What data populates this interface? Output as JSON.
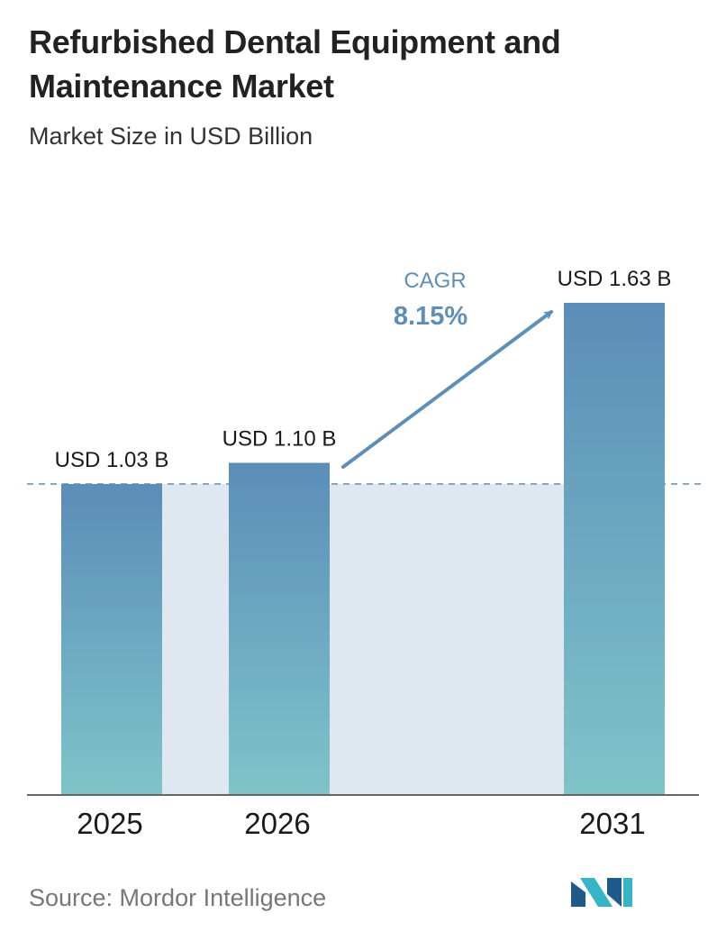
{
  "header": {
    "title": "Refurbished Dental Equipment and Maintenance Market",
    "subtitle": "Market Size in USD Billion"
  },
  "chart_data": {
    "type": "bar",
    "title": "Refurbished Dental Equipment and Maintenance Market",
    "subtitle": "Market Size in USD Billion",
    "categories": [
      "2025",
      "2026",
      "2031"
    ],
    "values": [
      1.03,
      1.1,
      1.63
    ],
    "value_labels": [
      "USD 1.03 B",
      "USD 1.10 B",
      "USD 1.63 B"
    ],
    "unit": "USD Billion",
    "cagr": {
      "label": "CAGR",
      "value": "8.15%",
      "from": "2026",
      "to": "2031"
    },
    "reference_line": 1.03,
    "ylim": [
      0,
      1.75
    ],
    "grid": false,
    "legend": "none"
  },
  "footer": {
    "source": "Source: Mordor Intelligence",
    "logo": "mordor-intelligence-logo"
  },
  "colors": {
    "bar_top": "#5b8db8",
    "bar_bottom": "#7fc4c9",
    "band": "#dfe8f1",
    "arrow": "#5e8fb6",
    "cagr_text": "#5e8fb6",
    "axis": "#666666",
    "logo_dark": "#1f5b8a",
    "logo_light": "#35b5c6"
  }
}
